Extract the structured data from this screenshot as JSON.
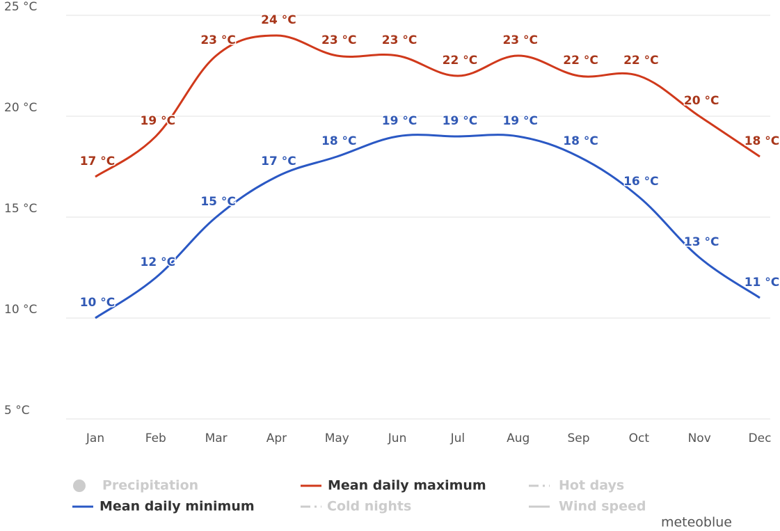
{
  "chart_data": {
    "type": "line",
    "categories": [
      "Jan",
      "Feb",
      "Mar",
      "Apr",
      "May",
      "Jun",
      "Jul",
      "Aug",
      "Sep",
      "Oct",
      "Nov",
      "Dec"
    ],
    "series": [
      {
        "name": "Mean daily maximum",
        "color": "#d0391b",
        "label_color": "#a8361a",
        "values": [
          17,
          19,
          23,
          24,
          23,
          23,
          22,
          23,
          22,
          22,
          20,
          18
        ],
        "value_labels": [
          "17 °C",
          "19 °C",
          "23 °C",
          "24 °C",
          "23 °C",
          "23 °C",
          "22 °C",
          "23 °C",
          "22 °C",
          "22 °C",
          "20 °C",
          "18 °C"
        ]
      },
      {
        "name": "Mean daily minimum",
        "color": "#2a58c4",
        "label_color": "#3159b5",
        "values": [
          10,
          12,
          15,
          17,
          18,
          19,
          19,
          19,
          18,
          16,
          13,
          11
        ],
        "value_labels": [
          "10 °C",
          "12 °C",
          "15 °C",
          "17 °C",
          "18 °C",
          "19 °C",
          "19 °C",
          "19 °C",
          "18 °C",
          "16 °C",
          "13 °C",
          "11 °C"
        ]
      }
    ],
    "ylim": [
      5,
      25
    ],
    "yticks": [
      {
        "value": 5,
        "label": "5 °C"
      },
      {
        "value": 10,
        "label": "10 °C"
      },
      {
        "value": 15,
        "label": "15 °C"
      },
      {
        "value": 20,
        "label": "20 °C"
      },
      {
        "value": 25,
        "label": "25 °C"
      }
    ],
    "grid": true,
    "inactive_legend": [
      "Precipitation",
      "Hot days",
      "Cold nights",
      "Wind speed"
    ],
    "credit": "meteoblue"
  }
}
